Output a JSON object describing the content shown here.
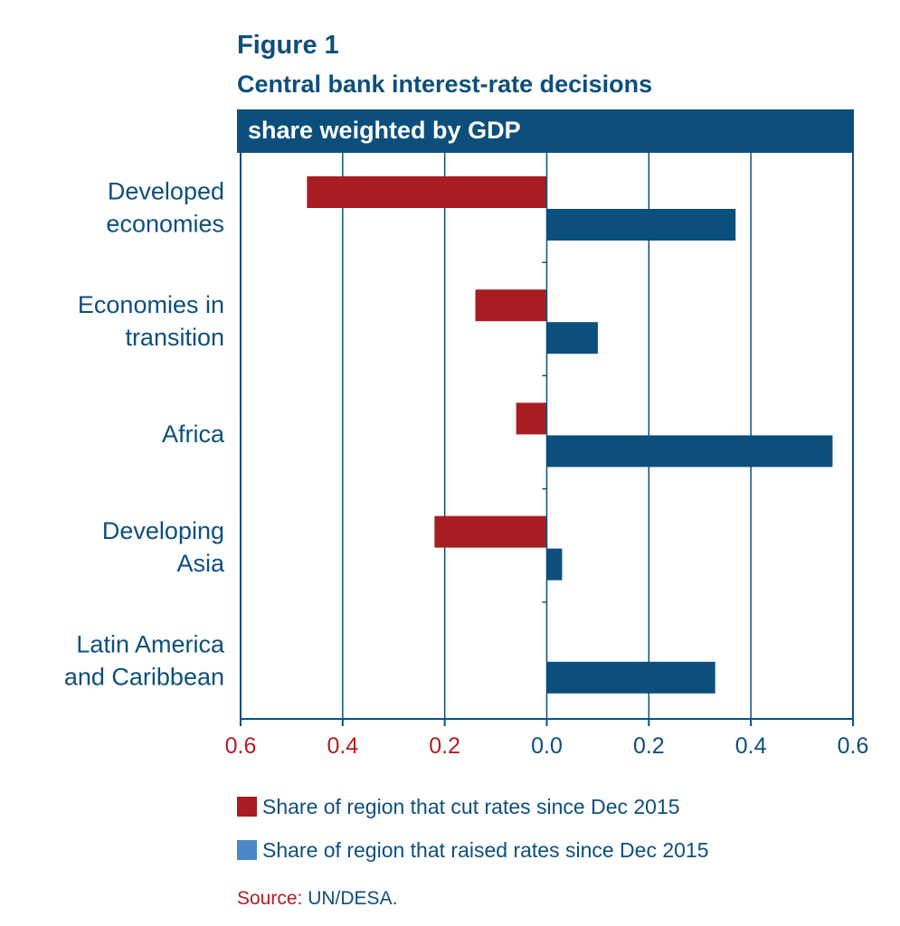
{
  "figure": {
    "label": "Figure 1",
    "title": "Central bank interest-rate decisions",
    "subtitle": "share weighted by GDP"
  },
  "colors": {
    "cut": "#a71d22",
    "raised": "#0d4f7c",
    "raised_legend": "#4a86c8",
    "text": "#0d4f7c",
    "axis_left": "#b01e23"
  },
  "chart_data": {
    "type": "bar",
    "orientation": "horizontal",
    "categories": [
      [
        "Developed",
        "economies"
      ],
      [
        "Economies in",
        "transition"
      ],
      [
        "Africa"
      ],
      [
        "Developing",
        "Asia"
      ],
      [
        "Latin America",
        "and Caribbean"
      ]
    ],
    "series": [
      {
        "name": "Share of region that cut rates since Dec 2015",
        "direction": "left",
        "values": [
          0.47,
          0.14,
          0.06,
          0.22,
          0.0
        ]
      },
      {
        "name": "Share of region that raised rates since Dec 2015",
        "direction": "right",
        "values": [
          0.37,
          0.1,
          0.56,
          0.03,
          0.33
        ]
      }
    ],
    "xlim": [
      -0.6,
      0.6
    ],
    "xticks": [
      -0.6,
      -0.4,
      -0.2,
      0.0,
      0.2,
      0.4,
      0.6
    ],
    "xtick_labels": [
      "0.6",
      "0.4",
      "0.2",
      "0.0",
      "0.2",
      "0.4",
      "0.6"
    ],
    "grid": true
  },
  "legend": [
    {
      "label": "Share of region that cut rates since Dec 2015"
    },
    {
      "label": "Share of region that raised rates since Dec 2015"
    }
  ],
  "source": {
    "label": "Source:",
    "text": "UN/DESA."
  }
}
